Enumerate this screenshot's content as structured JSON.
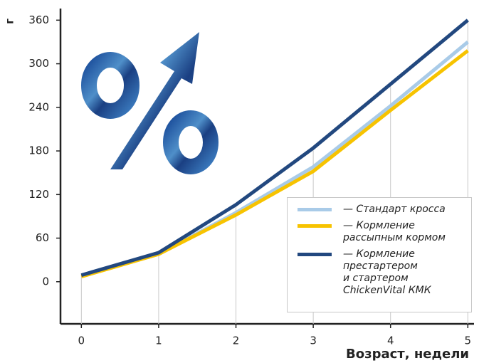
{
  "chart_data": {
    "type": "line",
    "y_label": "г",
    "x_label": "Возраст, недели",
    "x": [
      0,
      1,
      2,
      3,
      4,
      5
    ],
    "xlim": [
      -0.27,
      5.08
    ],
    "xticks": [
      0,
      1,
      2,
      3,
      4,
      5
    ],
    "ylim": [
      -58,
      376
    ],
    "yticks": [
      0,
      60,
      120,
      180,
      240,
      300,
      360
    ],
    "series": [
      {
        "name": "— Стандарт кросса",
        "color": "#a9cbe8",
        "values": [
          8,
          38,
          95,
          158,
          242,
          330
        ]
      },
      {
        "name": "— Кормление\nрассыпным кормом",
        "color": "#f7c300",
        "values": [
          7,
          38,
          92,
          152,
          236,
          318
        ]
      },
      {
        "name": "— Кормление\nпрестартером\nи стартером\nChickenVital КМК",
        "color": "#22487f",
        "values": [
          9,
          40,
          106,
          184,
          272,
          360
        ]
      }
    ]
  }
}
